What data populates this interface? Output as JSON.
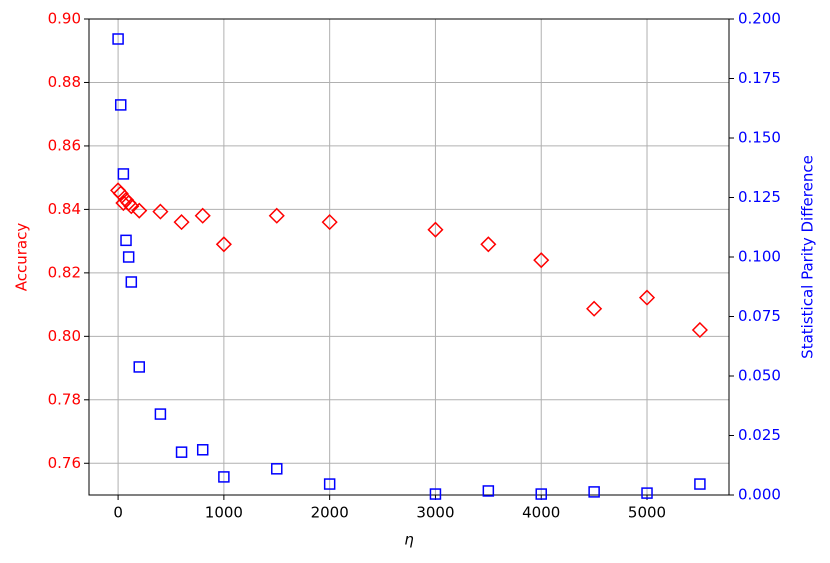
{
  "chart_data": {
    "type": "scatter",
    "xlabel": "η",
    "ylabel": "Accuracy",
    "y2label": "Statistical Parity Difference",
    "x": [
      0,
      25,
      50,
      75,
      100,
      125,
      200,
      400,
      600,
      800,
      1000,
      1500,
      2000,
      3000,
      3500,
      4000,
      4500,
      5000,
      5500
    ],
    "series": [
      {
        "name": "Accuracy",
        "color": "#ff0000",
        "marker": "diamond",
        "axis": "y",
        "values": [
          0.846,
          0.845,
          0.842,
          0.843,
          0.842,
          0.841,
          0.8396,
          0.8393,
          0.836,
          0.838,
          0.829,
          0.838,
          0.836,
          0.8336,
          0.829,
          0.824,
          0.8087,
          0.8122,
          0.802
        ]
      },
      {
        "name": "Statistical Parity Difference",
        "color": "#0000ff",
        "marker": "square",
        "axis": "y2",
        "values": [
          0.1916,
          0.1639,
          0.1349,
          0.107,
          0.1,
          0.0895,
          0.0538,
          0.034,
          0.018,
          0.019,
          0.0076,
          0.011,
          0.0046,
          0.0004,
          0.0017,
          0.0004,
          0.0013,
          0.0008,
          0.0046
        ]
      }
    ],
    "xlim": [
      -275,
      5775
    ],
    "xticks": [
      0,
      1000,
      2000,
      3000,
      4000,
      5000
    ],
    "ylim": [
      0.75,
      0.9
    ],
    "yticks": [
      0.76,
      0.78,
      {
        "value": 0.8,
        "label": "0.80"
      },
      0.82,
      0.84,
      0.86,
      0.88,
      {
        "value": 0.9,
        "label": "0.90"
      }
    ],
    "y2lim": [
      0,
      0.2
    ],
    "y2ticks": [
      {
        "value": 0,
        "label": "0.000"
      },
      {
        "value": 0.025,
        "label": "0.025"
      },
      {
        "value": 0.05,
        "label": "0.050"
      },
      {
        "value": 0.075,
        "label": "0.075"
      },
      {
        "value": 0.1,
        "label": "0.100"
      },
      {
        "value": 0.125,
        "label": "0.125"
      },
      {
        "value": 0.15,
        "label": "0.150"
      },
      {
        "value": 0.175,
        "label": "0.175"
      },
      {
        "value": 0.2,
        "label": "0.200"
      }
    ],
    "grid": true
  }
}
